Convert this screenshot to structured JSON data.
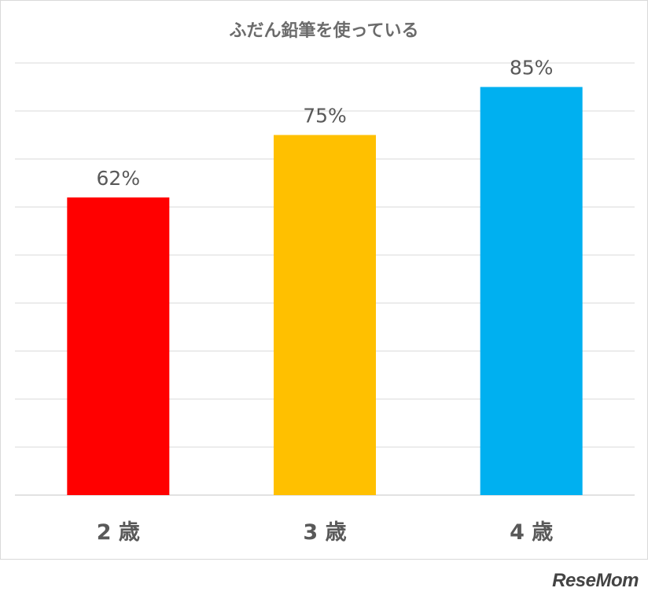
{
  "chart_data": {
    "type": "bar",
    "title": "ふだん鉛筆を使っている",
    "categories": [
      "2 歳",
      "3 歳",
      "4 歳"
    ],
    "values": [
      62,
      75,
      85
    ],
    "data_labels": [
      "62%",
      "75%",
      "85%"
    ],
    "colors": [
      "#ff0000",
      "#ffc000",
      "#00b0f0"
    ],
    "ylim": [
      0,
      90
    ],
    "grid": true,
    "legend": "none"
  },
  "watermark": "ReseMom"
}
